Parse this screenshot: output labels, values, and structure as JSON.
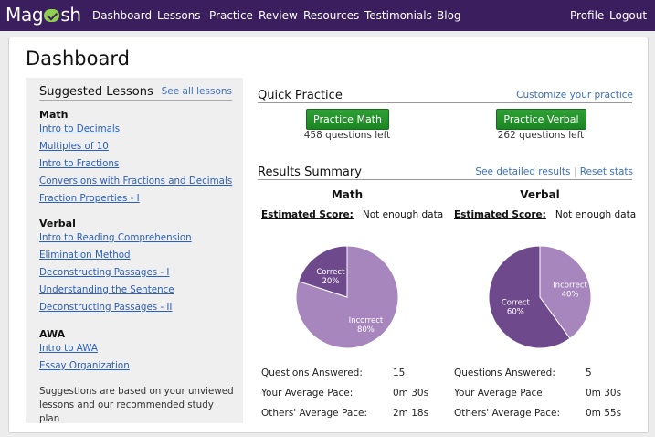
{
  "nav": {
    "logo_left": "Mag",
    "logo_right": "sh",
    "items": [
      "Dashboard",
      "Lessons",
      "Practice",
      "Review",
      "Resources",
      "Testimonials",
      "Blog"
    ],
    "profile": "Profile",
    "logout": "Logout"
  },
  "page": {
    "title": "Dashboard"
  },
  "suggested": {
    "heading": "Suggested Lessons",
    "see_all": "See all lessons",
    "sections": [
      {
        "title": "Math",
        "lessons": [
          "Intro to Decimals",
          "Multiples of 10",
          "Intro to Fractions",
          "Conversions with Fractions and Decimals",
          "Fraction Properties - I"
        ]
      },
      {
        "title": "Verbal",
        "lessons": [
          "Intro to Reading Comprehension",
          "Elimination Method",
          "Deconstructing Passages - I",
          "Understanding the Sentence",
          "Deconstructing Passages - II"
        ]
      },
      {
        "title": "AWA",
        "lessons": [
          "Intro to AWA",
          "Essay Organization"
        ]
      }
    ],
    "note": "Suggestions are based on your unviewed lessons and our recommended study plan"
  },
  "quick_practice": {
    "heading": "Quick Practice",
    "customize": "Customize your practice",
    "math_button": "Practice Math",
    "math_left": "458 questions left",
    "verbal_button": "Practice Verbal",
    "verbal_left": "262 questions left"
  },
  "results": {
    "heading": "Results Summary",
    "detailed": "See detailed results",
    "separator": "|",
    "reset": "Reset stats",
    "est_label": "Estimated Score:",
    "math": {
      "subject": "Math",
      "score": "Not enough data",
      "pie": {
        "correct_label": "Correct",
        "correct_pct": "20%",
        "correct": 20,
        "incorrect_label": "Incorrect",
        "incorrect_pct": "80%",
        "incorrect": 80
      },
      "stats": [
        {
          "label": "Questions Answered:",
          "value": "15"
        },
        {
          "label": "Your Average Pace:",
          "value": "0m 30s"
        },
        {
          "label": "Others' Average Pace:",
          "value": "2m 18s"
        }
      ]
    },
    "verbal": {
      "subject": "Verbal",
      "score": "Not enough data",
      "pie": {
        "correct_label": "Correct",
        "correct_pct": "60%",
        "correct": 60,
        "incorrect_label": "Incorrect",
        "incorrect_pct": "40%",
        "incorrect": 40
      },
      "stats": [
        {
          "label": "Questions Answered:",
          "value": "5"
        },
        {
          "label": "Your Average Pace:",
          "value": "0m 30s"
        },
        {
          "label": "Others' Average Pace:",
          "value": "0m 55s"
        }
      ]
    },
    "colors": {
      "correct": "#6e4a8c",
      "incorrect": "#a686bd"
    }
  }
}
